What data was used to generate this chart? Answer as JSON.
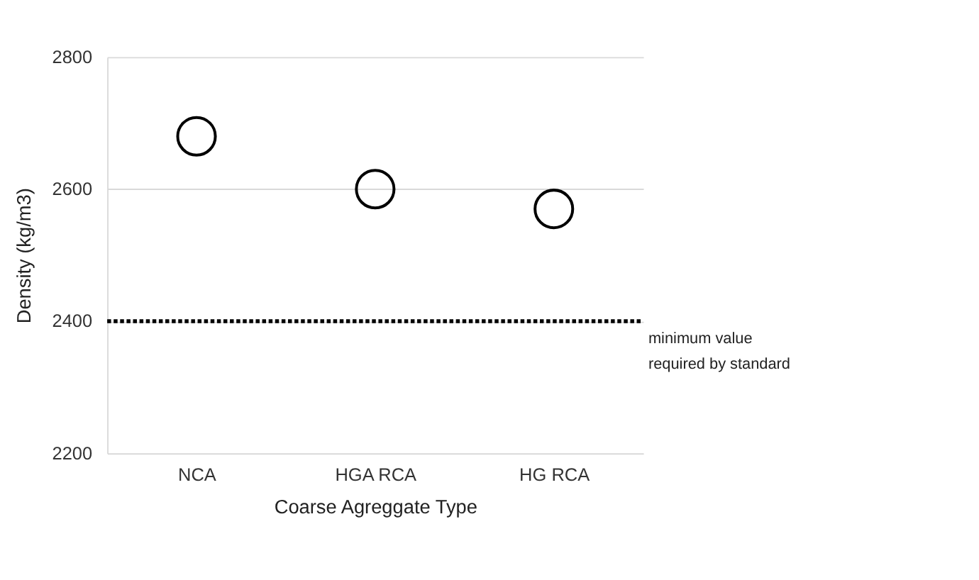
{
  "chart_data": {
    "type": "scatter",
    "xlabel": "Coarse Agreggate Type",
    "ylabel": "Density (kg/m3)",
    "categories": [
      "NCA",
      "HGA RCA",
      "HG RCA"
    ],
    "series": [
      {
        "color": "#000000",
        "values": [
          2680,
          2600,
          2570
        ]
      }
    ],
    "marker": "circle",
    "ylim": [
      2200,
      2800
    ],
    "yticks": [
      2200,
      2400,
      2600,
      2800
    ],
    "grid": "y",
    "ref_lines": [
      {
        "axis": "y",
        "value": 2400,
        "label": "minimum value required by standard",
        "color": "#000000",
        "line_style": "dotted"
      }
    ]
  }
}
